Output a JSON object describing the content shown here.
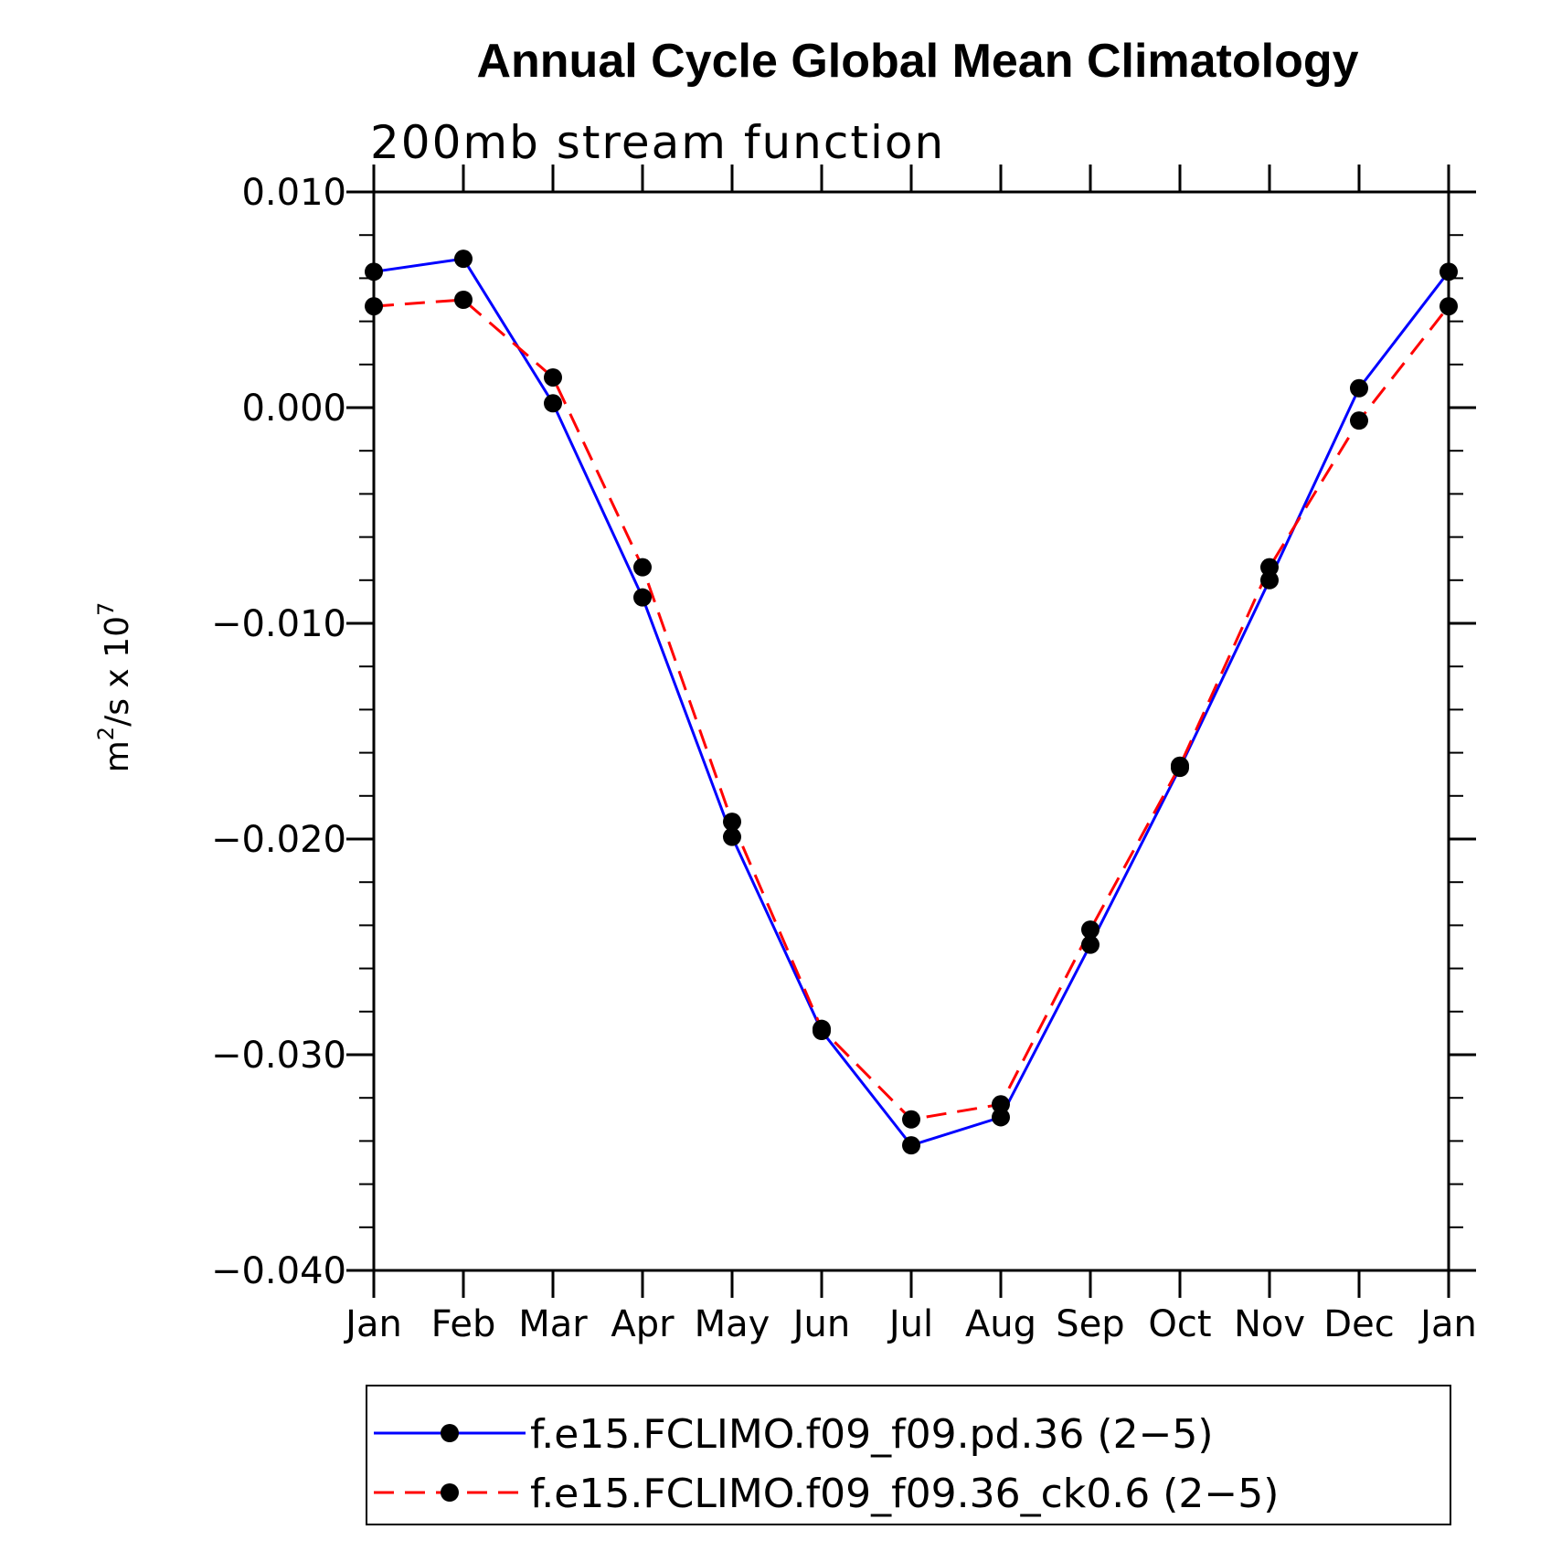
{
  "chart_data": {
    "type": "line",
    "title": "Annual Cycle Global Mean Climatology",
    "subtitle": "200mb stream function",
    "ylabel": {
      "base": "m",
      "sup1": "2",
      "mid": "/s x 10",
      "sup2": "7"
    },
    "xlabel": "",
    "categories": [
      "Jan",
      "Feb",
      "Mar",
      "Apr",
      "May",
      "Jun",
      "Jul",
      "Aug",
      "Sep",
      "Oct",
      "Nov",
      "Dec",
      "Jan"
    ],
    "ylim": [
      -0.04,
      0.01
    ],
    "yticks": [
      0.01,
      0.0,
      -0.01,
      -0.02,
      -0.03,
      -0.04
    ],
    "ytick_labels": [
      "0.010",
      "0.000",
      "−0.010",
      "−0.020",
      "−0.030",
      "−0.040"
    ],
    "grid": false,
    "legend_position": "bottom",
    "series": [
      {
        "name": "f.e15.FCLIMO.f09_f09.pd.36 (2−5)",
        "color": "#0000ff",
        "dash": "solid",
        "marker": "filled-circle",
        "values": [
          0.0063,
          0.0069,
          0.0002,
          -0.0088,
          -0.0199,
          -0.0289,
          -0.0342,
          -0.0329,
          -0.0249,
          -0.0167,
          -0.008,
          0.0009,
          0.0063
        ]
      },
      {
        "name": "f.e15.FCLIMO.f09_f09.36_ck0.6 (2−5)",
        "color": "#ff0000",
        "dash": "dashed",
        "marker": "filled-circle",
        "values": [
          0.0047,
          0.005,
          0.0014,
          -0.0074,
          -0.0192,
          -0.0288,
          -0.033,
          -0.0323,
          -0.0242,
          -0.0166,
          -0.0074,
          -0.0006,
          0.0047
        ]
      }
    ]
  }
}
